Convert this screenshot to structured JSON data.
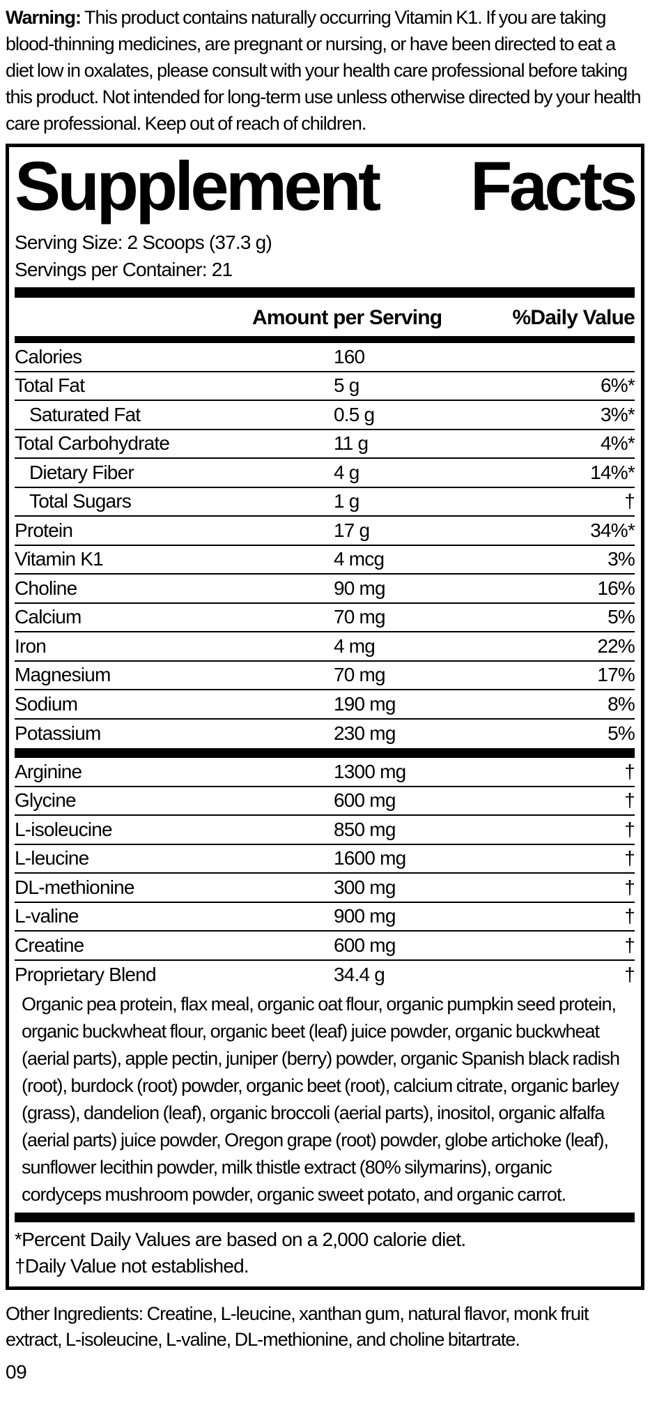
{
  "colors": {
    "ink": "#000000",
    "paper": "#ffffff"
  },
  "warning": {
    "label": "Warning:",
    "text": " This product contains naturally occurring Vitamin K1. If you are taking blood-thinning medicines, are pregnant or nursing, or have been directed to eat a diet low in oxalates, please consult with your health care professional before taking this product. Not intended for long-term use unless otherwise directed by your health care professional. Keep out of reach of children."
  },
  "panel": {
    "title": "Supplement Facts",
    "title_left": "Supplement",
    "title_right": "Facts",
    "serving_size": "Serving Size: 2 Scoops (37.3 g)",
    "servings_per_container": "Servings per Container: 21",
    "columns": {
      "amount": "Amount per Serving",
      "daily_value": "%Daily Value"
    },
    "nutrients": [
      {
        "name": "Calories",
        "amount": "160",
        "daily_value": "",
        "indent": false
      },
      {
        "name": "Total Fat",
        "amount": "5 g",
        "daily_value": "6%*",
        "indent": false
      },
      {
        "name": "Saturated Fat",
        "amount": "0.5 g",
        "daily_value": "3%*",
        "indent": true
      },
      {
        "name": "Total Carbohydrate",
        "amount": "11 g",
        "daily_value": "4%*",
        "indent": false
      },
      {
        "name": "Dietary Fiber",
        "amount": "4 g",
        "daily_value": "14%*",
        "indent": true
      },
      {
        "name": "Total Sugars",
        "amount": "1 g",
        "daily_value": "†",
        "indent": true
      },
      {
        "name": "Protein",
        "amount": "17 g",
        "daily_value": "34%*",
        "indent": false
      },
      {
        "name": "Vitamin K1",
        "amount": "4 mcg",
        "daily_value": "3%",
        "indent": false
      },
      {
        "name": "Choline",
        "amount": "90 mg",
        "daily_value": "16%",
        "indent": false
      },
      {
        "name": "Calcium",
        "amount": "70 mg",
        "daily_value": "5%",
        "indent": false
      },
      {
        "name": "Iron",
        "amount": "4 mg",
        "daily_value": "22%",
        "indent": false
      },
      {
        "name": "Magnesium",
        "amount": "70 mg",
        "daily_value": "17%",
        "indent": false
      },
      {
        "name": "Sodium",
        "amount": "190 mg",
        "daily_value": "8%",
        "indent": false
      },
      {
        "name": "Potassium",
        "amount": "230 mg",
        "daily_value": "5%",
        "indent": false
      }
    ],
    "amino_acids": [
      {
        "name": "Arginine",
        "amount": "1300 mg",
        "daily_value": "†",
        "indent": false
      },
      {
        "name": "Glycine",
        "amount": "600 mg",
        "daily_value": "†",
        "indent": false
      },
      {
        "name": "L-isoleucine",
        "amount": "850 mg",
        "daily_value": "†",
        "indent": false
      },
      {
        "name": "L-leucine",
        "amount": "1600 mg",
        "daily_value": "†",
        "indent": false
      },
      {
        "name": "DL-methionine",
        "amount": "300 mg",
        "daily_value": "†",
        "indent": false
      },
      {
        "name": "L-valine",
        "amount": "900 mg",
        "daily_value": "†",
        "indent": false
      },
      {
        "name": "Creatine",
        "amount": "600 mg",
        "daily_value": "†",
        "indent": false
      },
      {
        "name": "Proprietary Blend",
        "amount": "34.4 g",
        "daily_value": "†",
        "indent": false
      }
    ],
    "blend_description": "Organic pea protein, flax meal, organic oat flour, organic pumpkin seed protein, organic buckwheat flour, organic beet (leaf) juice powder, organic buckwheat (aerial parts), apple pectin, juniper (berry) powder, organic Spanish black radish (root), burdock (root) powder, organic beet (root), calcium citrate, organic barley (grass), dandelion (leaf), organic broccoli (aerial parts), inositol, organic alfalfa (aerial parts) juice powder, Oregon grape (root) powder, globe artichoke (leaf), sunflower lecithin powder, milk thistle extract (80% silymarins), organic cordyceps mushroom powder, organic sweet potato, and organic carrot.",
    "footnotes": {
      "asterisk": "*Percent Daily Values are based on a 2,000 calorie diet.",
      "dagger": "†Daily Value not established."
    }
  },
  "other_ingredients": "Other Ingredients: Creatine, L-leucine, xanthan gum, natural flavor, monk fruit extract, L-isoleucine, L-valine, DL-methionine, and choline bitartrate.",
  "footer_code": "09"
}
